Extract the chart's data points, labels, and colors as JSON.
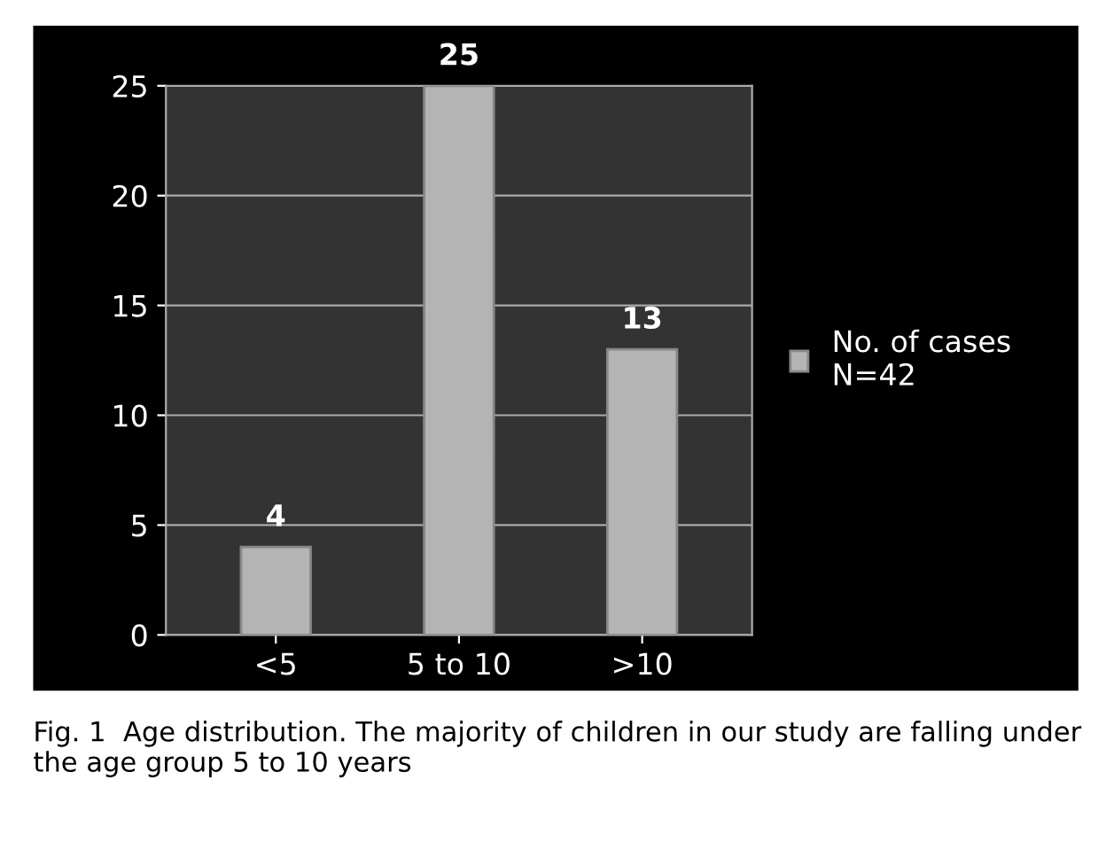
{
  "chart_data": {
    "type": "bar",
    "categories": [
      "<5",
      "5 to 10",
      ">10"
    ],
    "series": [
      {
        "name": "No. of cases\nN=42",
        "color": "#b4b4b4",
        "values": [
          4,
          25,
          13
        ]
      }
    ],
    "ylim": [
      0,
      25
    ],
    "yticks": [
      0,
      5,
      10,
      15,
      20,
      25
    ],
    "grid": "y",
    "legend": "right",
    "data_labels": true,
    "annotations": [
      "Fig. 1  Age distribution. The majority of children in our study are falling under the age group 5 to 10 years"
    ]
  }
}
